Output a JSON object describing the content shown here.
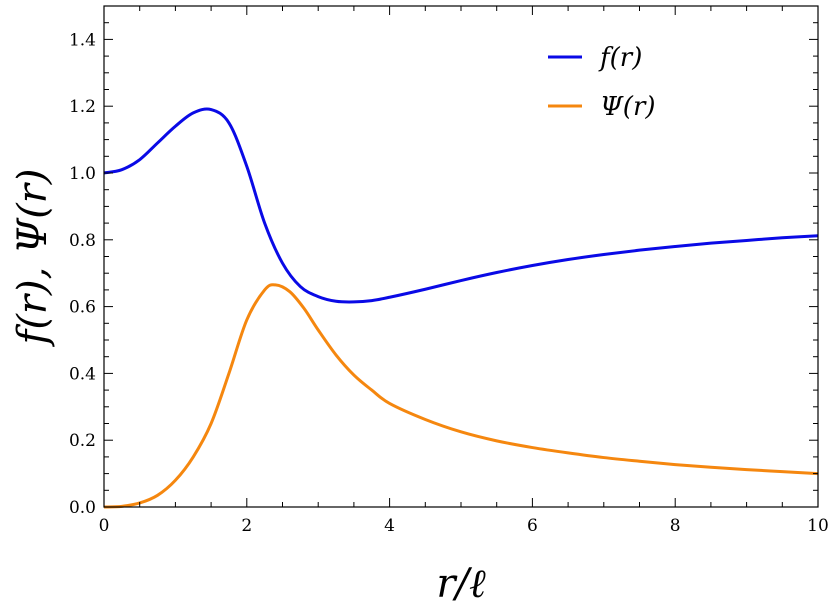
{
  "chart_data": {
    "type": "line",
    "xlabel": "r/ℓ",
    "ylabel": "f(r), Ψ(r)",
    "xlim": [
      0,
      10
    ],
    "ylim": [
      0,
      1.5
    ],
    "xticks": [
      0,
      2,
      4,
      6,
      8,
      10
    ],
    "yticks": [
      0.0,
      0.2,
      0.4,
      0.6,
      0.8,
      1.0,
      1.2,
      1.4
    ],
    "xtick_labels": [
      "0",
      "2",
      "4",
      "6",
      "8",
      "10"
    ],
    "ytick_labels": [
      "0.0",
      "0.2",
      "0.4",
      "0.6",
      "0.8",
      "1.0",
      "1.2",
      "1.4"
    ],
    "grid": false,
    "legend_position": "top-right",
    "series": [
      {
        "name": "f(r)",
        "color": "#0a0ae6",
        "x": [
          0,
          0.25,
          0.5,
          0.75,
          1.0,
          1.25,
          1.5,
          1.75,
          2.0,
          2.25,
          2.5,
          2.75,
          3.0,
          3.25,
          3.5,
          3.75,
          4.0,
          4.5,
          5.0,
          5.5,
          6.0,
          6.5,
          7.0,
          7.5,
          8.0,
          8.5,
          9.0,
          9.5,
          10.0
        ],
        "values": [
          1.0,
          1.01,
          1.04,
          1.09,
          1.14,
          1.18,
          1.19,
          1.15,
          1.02,
          0.85,
          0.73,
          0.66,
          0.63,
          0.616,
          0.614,
          0.618,
          0.628,
          0.652,
          0.678,
          0.702,
          0.723,
          0.741,
          0.756,
          0.769,
          0.78,
          0.79,
          0.798,
          0.806,
          0.812
        ]
      },
      {
        "name": "Ψ(r)",
        "color": "#f5870f",
        "x": [
          0,
          0.25,
          0.5,
          0.75,
          1.0,
          1.25,
          1.5,
          1.75,
          2.0,
          2.25,
          2.4,
          2.6,
          2.8,
          3.0,
          3.25,
          3.5,
          3.75,
          4.0,
          4.5,
          5.0,
          5.5,
          6.0,
          6.5,
          7.0,
          7.5,
          8.0,
          8.5,
          9.0,
          9.5,
          10.0
        ],
        "values": [
          0.0,
          0.002,
          0.012,
          0.035,
          0.08,
          0.15,
          0.25,
          0.4,
          0.56,
          0.65,
          0.665,
          0.645,
          0.595,
          0.53,
          0.455,
          0.395,
          0.35,
          0.31,
          0.262,
          0.225,
          0.198,
          0.178,
          0.162,
          0.148,
          0.137,
          0.127,
          0.119,
          0.112,
          0.106,
          0.1
        ]
      }
    ]
  }
}
